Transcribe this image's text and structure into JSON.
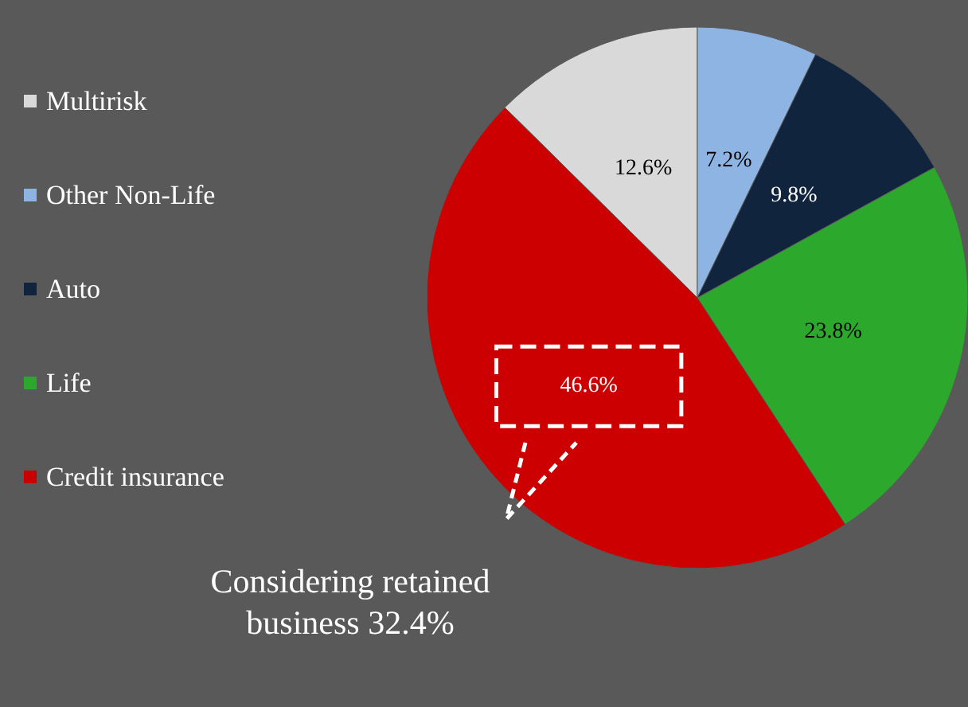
{
  "chart_data": {
    "type": "pie",
    "categories": [
      "Multirisk",
      "Other Non-Life",
      "Auto",
      "Life",
      "Credit insurance"
    ],
    "values": [
      12.6,
      7.2,
      9.8,
      23.8,
      46.6
    ],
    "colors": [
      "#d9d9d9",
      "#8eb4e3",
      "#10243e",
      "#2ca82c",
      "#cc0000"
    ],
    "value_labels": [
      "12.6%",
      "7.2%",
      "9.8%",
      "23.8%",
      "46.6%"
    ],
    "legend": "left",
    "annotations": [
      "Considering retained business 32.4%"
    ]
  }
}
